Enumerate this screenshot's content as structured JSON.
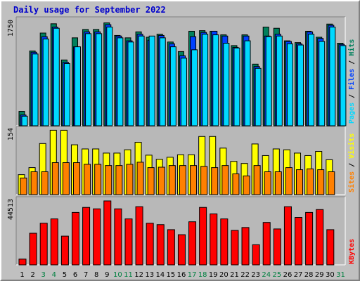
{
  "title": "Daily usage for September 2022",
  "colors": {
    "background": "#c0c0c0",
    "panel": "#b8b8b8",
    "hits": "#00805c",
    "files": "#0040ff",
    "pages": "#00d8ff",
    "visits": "#ffff00",
    "sites": "#ff8000",
    "kbytes": "#ff0000",
    "weekday_label": "#000000",
    "weekend_label": "#008040"
  },
  "chart_data": [
    {
      "type": "bar",
      "panel": "hits-files-pages",
      "ymax_label": "1750",
      "ylim": [
        0,
        1750
      ],
      "categories": [
        "1",
        "2",
        "3",
        "4",
        "5",
        "6",
        "7",
        "8",
        "9",
        "10",
        "11",
        "12",
        "13",
        "14",
        "15",
        "16",
        "17",
        "18",
        "19",
        "20",
        "21",
        "22",
        "23",
        "24",
        "25",
        "26",
        "27",
        "28",
        "29",
        "30",
        "31"
      ],
      "weekend_days": [
        "3",
        "4",
        "10",
        "11",
        "17",
        "18",
        "24",
        "25",
        "31"
      ],
      "legend": [
        "Pages",
        "Files",
        "Hits"
      ],
      "series": [
        {
          "name": "Hits",
          "values": [
            240,
            1250,
            1550,
            1705,
            1100,
            1470,
            1610,
            1610,
            1720,
            1510,
            1470,
            1570,
            1480,
            1530,
            1400,
            1240,
            1580,
            1590,
            1580,
            1520,
            1340,
            1520,
            1030,
            1650,
            1630,
            1420,
            1390,
            1580,
            1480,
            1700,
            1380
          ]
        },
        {
          "name": "Files",
          "values": [
            180,
            1230,
            1490,
            1650,
            1060,
            1320,
            1570,
            1570,
            1690,
            1500,
            1420,
            1530,
            1430,
            1510,
            1370,
            1170,
            1490,
            1560,
            1580,
            1500,
            1310,
            1500,
            990,
            1500,
            1530,
            1410,
            1370,
            1570,
            1460,
            1680,
            1360
          ]
        },
        {
          "name": "Pages",
          "values": [
            160,
            1200,
            1450,
            1630,
            1040,
            1320,
            1540,
            1540,
            1650,
            1470,
            1400,
            1500,
            1500,
            1470,
            1320,
            1130,
            1270,
            1530,
            1520,
            1380,
            1300,
            1420,
            960,
            1490,
            1500,
            1370,
            1350,
            1530,
            1410,
            1650,
            1340
          ]
        }
      ]
    },
    {
      "type": "bar",
      "panel": "visits-sites",
      "ymax_label": "154",
      "ylim": [
        0,
        154
      ],
      "categories": [
        "1",
        "2",
        "3",
        "4",
        "5",
        "6",
        "7",
        "8",
        "9",
        "10",
        "11",
        "12",
        "13",
        "14",
        "15",
        "16",
        "17",
        "18",
        "19",
        "20",
        "21",
        "22",
        "23",
        "24",
        "25",
        "26",
        "27",
        "28",
        "29",
        "30",
        "31"
      ],
      "legend": [
        "Sites",
        "Visits"
      ],
      "series": [
        {
          "name": "Visits",
          "values": [
            48,
            65,
            123,
            155,
            155,
            120,
            110,
            110,
            100,
            100,
            108,
            126,
            95,
            85,
            90,
            96,
            96,
            140,
            140,
            112,
            80,
            75,
            122,
            94,
            110,
            108,
            100,
            94,
            104,
            84,
            0
          ]
        },
        {
          "name": "Sites",
          "values": [
            40,
            55,
            55,
            77,
            77,
            77,
            73,
            73,
            70,
            70,
            73,
            78,
            65,
            66,
            70,
            70,
            70,
            68,
            65,
            70,
            50,
            45,
            70,
            55,
            55,
            65,
            60,
            62,
            60,
            55,
            0
          ]
        }
      ]
    },
    {
      "type": "bar",
      "panel": "kbytes",
      "ymax_label": "44513",
      "ylim": [
        0,
        44513
      ],
      "categories": [
        "1",
        "2",
        "3",
        "4",
        "5",
        "6",
        "7",
        "8",
        "9",
        "10",
        "11",
        "12",
        "13",
        "14",
        "15",
        "16",
        "17",
        "18",
        "19",
        "20",
        "21",
        "22",
        "23",
        "24",
        "25",
        "26",
        "27",
        "28",
        "29",
        "30",
        "31"
      ],
      "legend": [
        "KBytes"
      ],
      "series": [
        {
          "name": "KBytes",
          "values": [
            4000,
            22000,
            29000,
            32000,
            20000,
            36500,
            40000,
            39000,
            44513,
            39000,
            32000,
            40500,
            29000,
            28000,
            24500,
            21000,
            30000,
            40000,
            35500,
            32000,
            24000,
            26000,
            14000,
            29500,
            25000,
            40500,
            33000,
            36500,
            38500,
            24500,
            0
          ]
        }
      ]
    }
  ]
}
